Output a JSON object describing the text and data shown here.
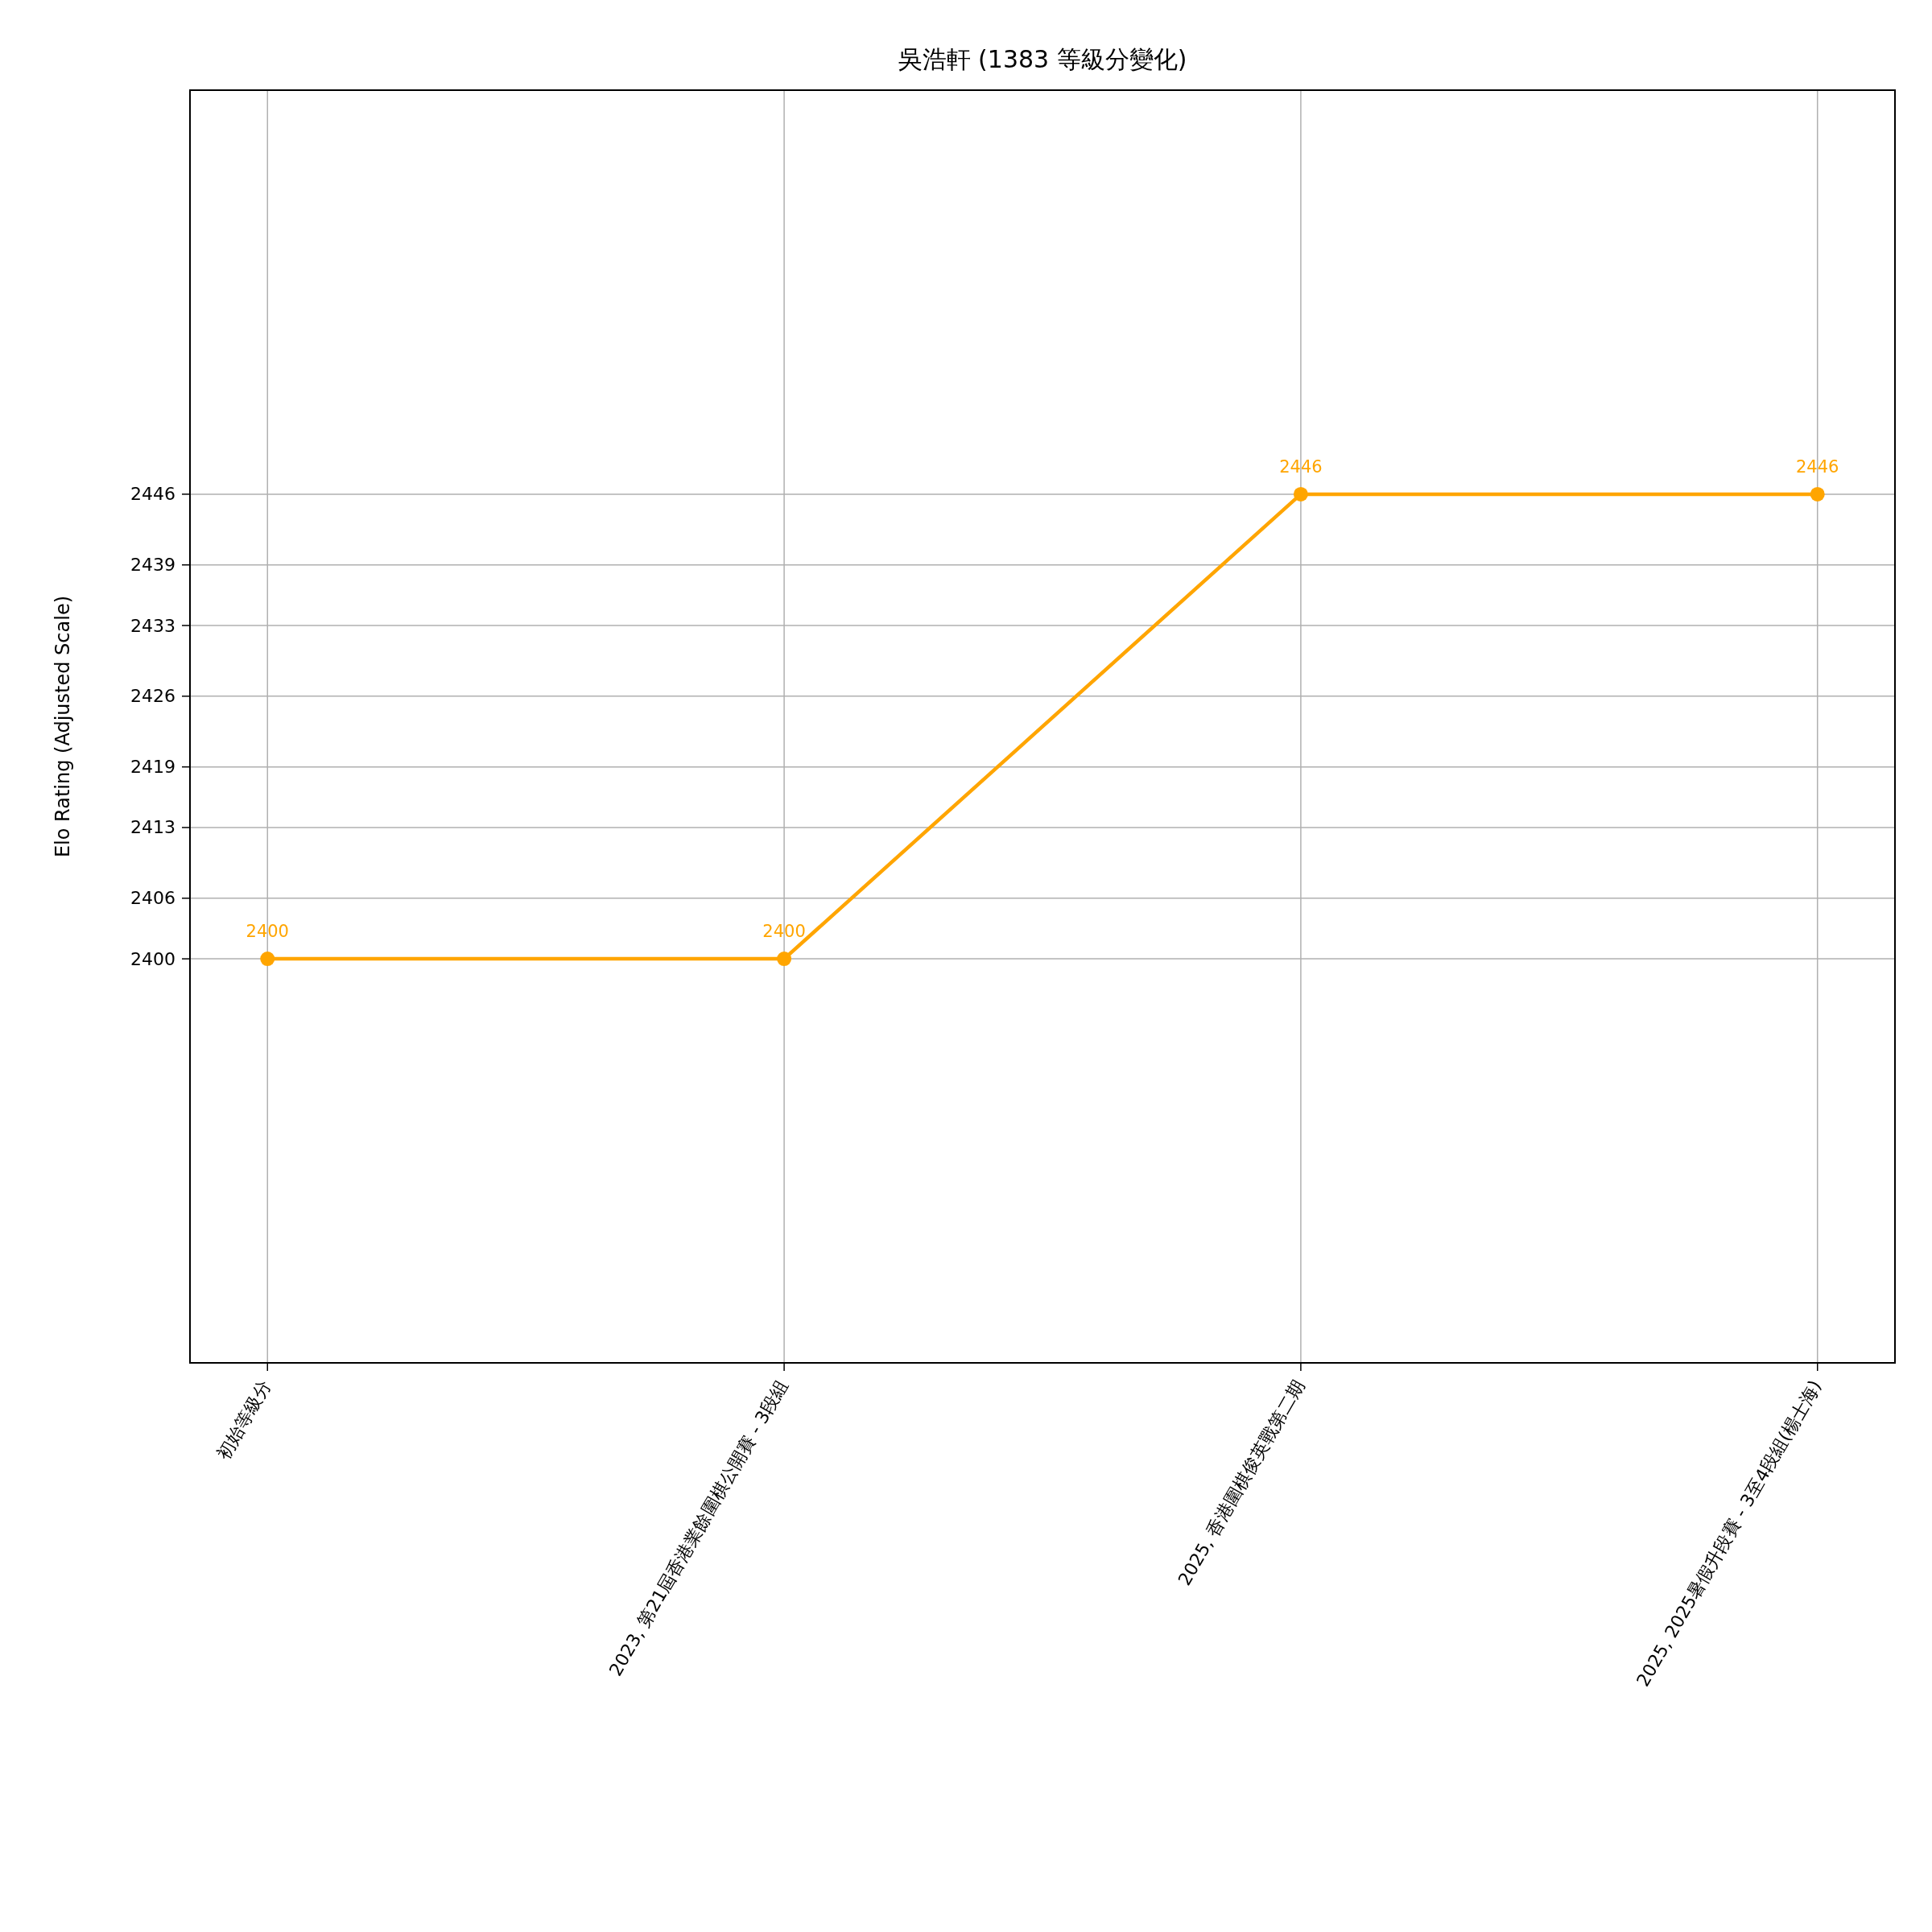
{
  "chart_data": {
    "type": "line",
    "title": "吳浩軒 (1383 等級分變化)",
    "ylabel": "Elo Rating (Adjusted Scale)",
    "categories": [
      "初始等級分",
      "2023, 第21屆香港業餘圍棋公開賽 - 3段組",
      "2025, 香港圍棋俊英戰第二期",
      "2025, 2025暑假升段賽 - 3至4段組(楊士海)"
    ],
    "series": [
      {
        "color": "#ffa500",
        "values": [
          2400,
          2400,
          2446,
          2446
        ]
      }
    ],
    "ylim": [
      2360,
      2486
    ],
    "yticks": [
      2400,
      2406,
      2413,
      2419,
      2426,
      2433,
      2439,
      2446
    ],
    "grid": true,
    "marker": "circle",
    "line_style": "solid",
    "data_labels": true
  }
}
